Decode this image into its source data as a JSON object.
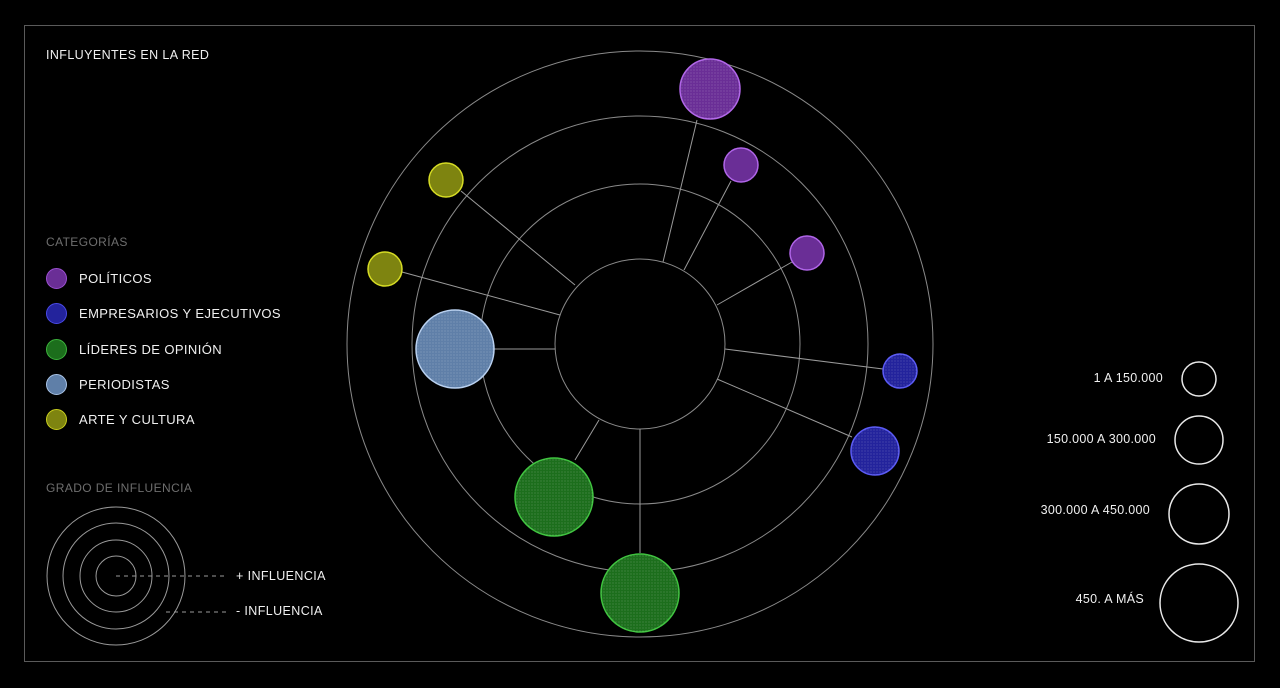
{
  "title": "INFLUYENTES EN LA RED",
  "categories_title": "CATEGORÍAS",
  "categories": [
    {
      "label": "POLÍTICOS",
      "color": "#9b4fd1",
      "fill": "#6a2e96"
    },
    {
      "label": "EMPRESARIOS Y EJECUTIVOS",
      "color": "#4a4ae8",
      "fill": "#23239c"
    },
    {
      "label": "LÍDERES DE OPINIÓN",
      "color": "#3cb43c",
      "fill": "#1c6e1c"
    },
    {
      "label": "PERIODISTAS",
      "color": "#a9c3e6",
      "fill": "#5f7fa8"
    },
    {
      "label": "ARTE Y CULTURA",
      "color": "#c9cf1e",
      "fill": "#7e8410"
    }
  ],
  "influence_title": "GRADO DE INFLUENCIA",
  "influence_more": "+ INFLUENCIA",
  "influence_less": "- INFLUENCIA",
  "size_legend": [
    {
      "label": "1 A 150.000"
    },
    {
      "label": "150.000 A 300.000"
    },
    {
      "label": "300.000 A 450.000"
    },
    {
      "label": "450. A MÁS"
    }
  ]
}
